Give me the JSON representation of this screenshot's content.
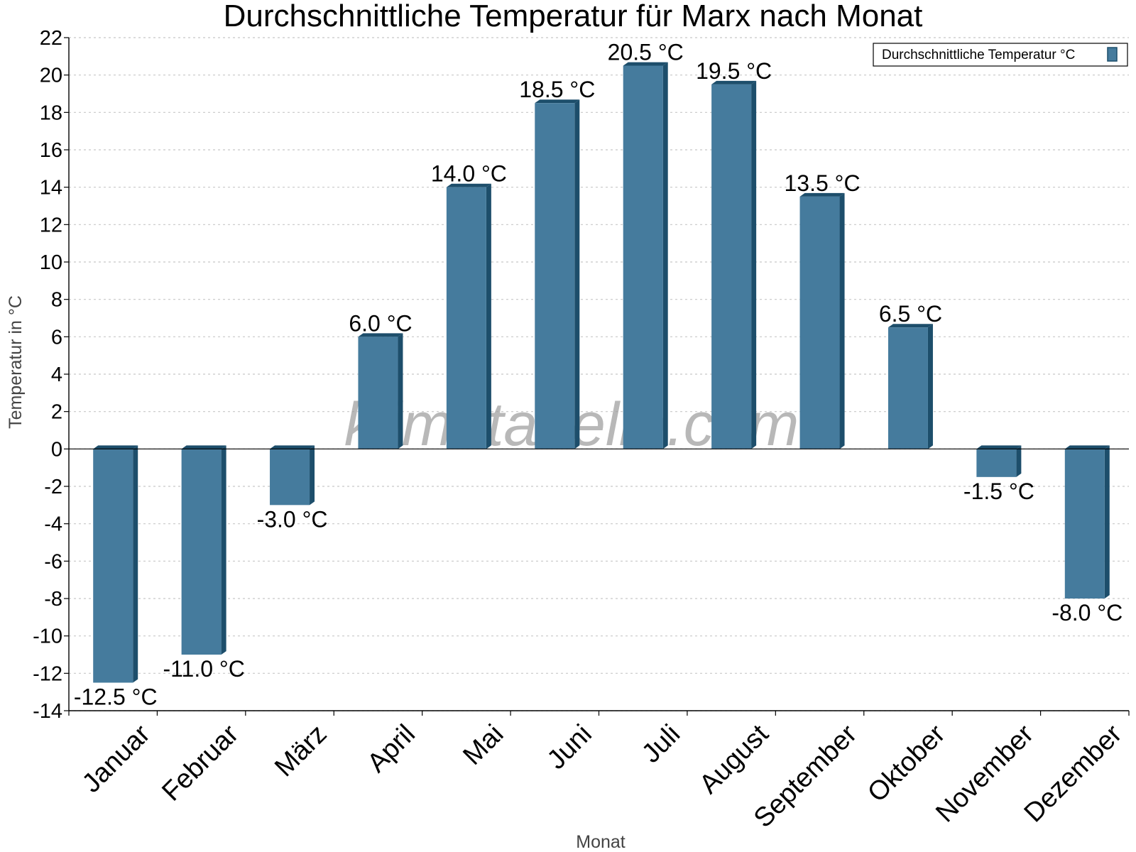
{
  "chart_data": {
    "type": "bar",
    "title": "Durchschnittliche Temperatur für Marx nach Monat",
    "xlabel": "Monat",
    "ylabel": "Temperatur in °C",
    "ylim": [
      -14,
      22
    ],
    "yticks": [
      "22",
      "20",
      "18",
      "16",
      "14",
      "12",
      "10",
      "8",
      "6",
      "4",
      "2",
      "0",
      "-2",
      "-4",
      "-6",
      "-8",
      "-10",
      "-12",
      "-14"
    ],
    "grid": true,
    "legend_position": "top-right",
    "watermark": "klimatabelle.com",
    "categories": [
      "Januar",
      "Februar",
      "März",
      "April",
      "Mai",
      "Juni",
      "Juli",
      "August",
      "September",
      "Oktober",
      "November",
      "Dezember"
    ],
    "series": [
      {
        "name": "Durchschnittliche Temperatur °C",
        "color": "#457b9d",
        "values": [
          -12.5,
          -11.0,
          -3.0,
          6.0,
          14.0,
          18.5,
          20.5,
          19.5,
          13.5,
          6.5,
          -1.5,
          -8.0
        ],
        "labels": [
          "-12.5 °C",
          "-11.0 °C",
          "-3.0 °C",
          "6.0 °C",
          "14.0 °C",
          "18.5 °C",
          "20.5 °C",
          "19.5 °C",
          "13.5 °C",
          "6.5 °C",
          "-1.5 °C",
          "-8.0 °C"
        ]
      }
    ]
  }
}
